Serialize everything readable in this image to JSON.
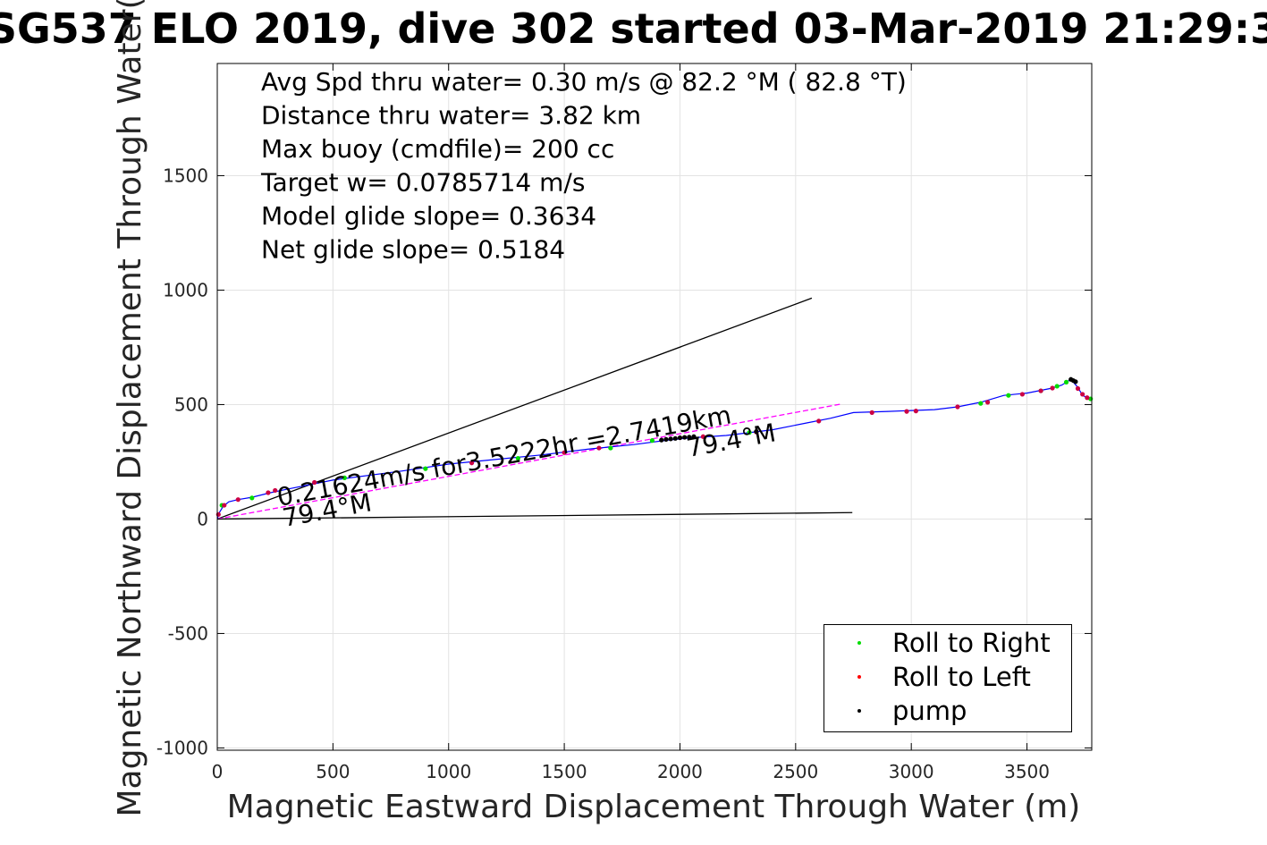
{
  "chart_data": {
    "type": "line",
    "title": "SG537 ELO 2019, dive 302 started 03-Mar-2019 21:29:3",
    "xlabel": "Magnetic Eastward Displacement Through Water (m)",
    "ylabel": "Magnetic Northward Displacement Through Water(",
    "xlim": [
      0,
      3780
    ],
    "ylim": [
      -1010,
      1990
    ],
    "xticks": [
      0,
      500,
      1000,
      1500,
      2000,
      2500,
      3000,
      3500
    ],
    "yticks": [
      -1000,
      -500,
      0,
      500,
      1000,
      1500
    ],
    "xtick_labels": [
      "0",
      "500",
      "1000",
      "1500",
      "2000",
      "2500",
      "3000",
      "3500"
    ],
    "ytick_labels": [
      "-1000",
      "-500",
      "0",
      "500",
      "1000",
      "1500"
    ],
    "grid": true,
    "legend_position": "bottom-right",
    "annotations": [
      "Avg Spd thru water=  0.30 m/s @  82.2 °M ( 82.8 °T)",
      "Distance thru water=  3.82 km",
      "Max buoy (cmdfile)= 200 cc",
      "Target w= 0.0785714 m/s",
      "Model glide slope= 0.3634",
      "Net glide slope= 0.5184"
    ],
    "in_plot_labels": {
      "current": "0.21624m/s for3.5222hr =2.7419km",
      "heading_near": "79.4°M",
      "heading_far": "79.4°M"
    },
    "series": [
      {
        "name": "track",
        "color": "#0000ff",
        "points": [
          [
            0,
            0
          ],
          [
            10,
            30
          ],
          [
            25,
            55
          ],
          [
            50,
            75
          ],
          [
            90,
            85
          ],
          [
            150,
            95
          ],
          [
            230,
            115
          ],
          [
            300,
            130
          ],
          [
            500,
            170
          ],
          [
            800,
            210
          ],
          [
            1000,
            240
          ],
          [
            1200,
            260
          ],
          [
            1400,
            280
          ],
          [
            1600,
            305
          ],
          [
            1800,
            325
          ],
          [
            1950,
            345
          ],
          [
            2050,
            355
          ],
          [
            2200,
            365
          ],
          [
            2400,
            390
          ],
          [
            2550,
            420
          ],
          [
            2650,
            440
          ],
          [
            2750,
            465
          ],
          [
            2900,
            470
          ],
          [
            3100,
            478
          ],
          [
            3200,
            490
          ],
          [
            3300,
            510
          ],
          [
            3400,
            540
          ],
          [
            3500,
            550
          ],
          [
            3600,
            570
          ],
          [
            3650,
            585
          ],
          [
            3690,
            610
          ],
          [
            3720,
            575
          ],
          [
            3740,
            540
          ],
          [
            3770,
            525
          ],
          [
            3780,
            525
          ]
        ]
      },
      {
        "name": "Roll to Right",
        "color": "#00dd00",
        "points": [
          [
            20,
            60
          ],
          [
            150,
            92
          ],
          [
            550,
            180
          ],
          [
            900,
            220
          ],
          [
            1300,
            265
          ],
          [
            1700,
            310
          ],
          [
            1880,
            343
          ],
          [
            2300,
            378
          ],
          [
            3300,
            505
          ],
          [
            3420,
            540
          ],
          [
            3560,
            560
          ],
          [
            3630,
            580
          ],
          [
            3670,
            598
          ],
          [
            3775,
            525
          ]
        ]
      },
      {
        "name": "Roll to Left",
        "color": "#cc0044",
        "points": [
          [
            5,
            20
          ],
          [
            30,
            60
          ],
          [
            90,
            85
          ],
          [
            220,
            115
          ],
          [
            250,
            125
          ],
          [
            420,
            160
          ],
          [
            1100,
            245
          ],
          [
            1500,
            290
          ],
          [
            1650,
            310
          ],
          [
            2000,
            355
          ],
          [
            2100,
            360
          ],
          [
            2330,
            380
          ],
          [
            2600,
            428
          ],
          [
            2830,
            465
          ],
          [
            2980,
            470
          ],
          [
            3020,
            472
          ],
          [
            3200,
            490
          ],
          [
            3330,
            510
          ],
          [
            3480,
            545
          ],
          [
            3560,
            560
          ],
          [
            3610,
            572
          ],
          [
            3720,
            570
          ],
          [
            3740,
            545
          ],
          [
            3760,
            530
          ]
        ]
      },
      {
        "name": "pump",
        "color": "#000000",
        "points": [
          [
            1920,
            345
          ],
          [
            1940,
            348
          ],
          [
            1960,
            350
          ],
          [
            1980,
            352
          ],
          [
            2000,
            355
          ],
          [
            2020,
            357
          ],
          [
            2040,
            358
          ],
          [
            2060,
            360
          ],
          [
            2330,
            382
          ],
          [
            3690,
            610
          ],
          [
            3700,
            605
          ],
          [
            3710,
            600
          ]
        ]
      }
    ],
    "reference_lines": [
      {
        "name": "model glide slope",
        "color": "#000000",
        "from": [
          0,
          0
        ],
        "to": [
          2570,
          965
        ]
      },
      {
        "name": "current",
        "color": "#000000",
        "from": [
          0,
          0
        ],
        "to": [
          2745,
          28
        ]
      },
      {
        "name": "net glide slope",
        "color": "#ff00ff",
        "from": [
          0,
          0
        ],
        "to": [
          2700,
          503
        ]
      }
    ]
  },
  "legend": {
    "items": [
      {
        "label": "Roll to Right",
        "color": "#00dd00"
      },
      {
        "label": "Roll to Left",
        "color": "#ff0000"
      },
      {
        "label": "pump",
        "color": "#000000"
      }
    ]
  }
}
